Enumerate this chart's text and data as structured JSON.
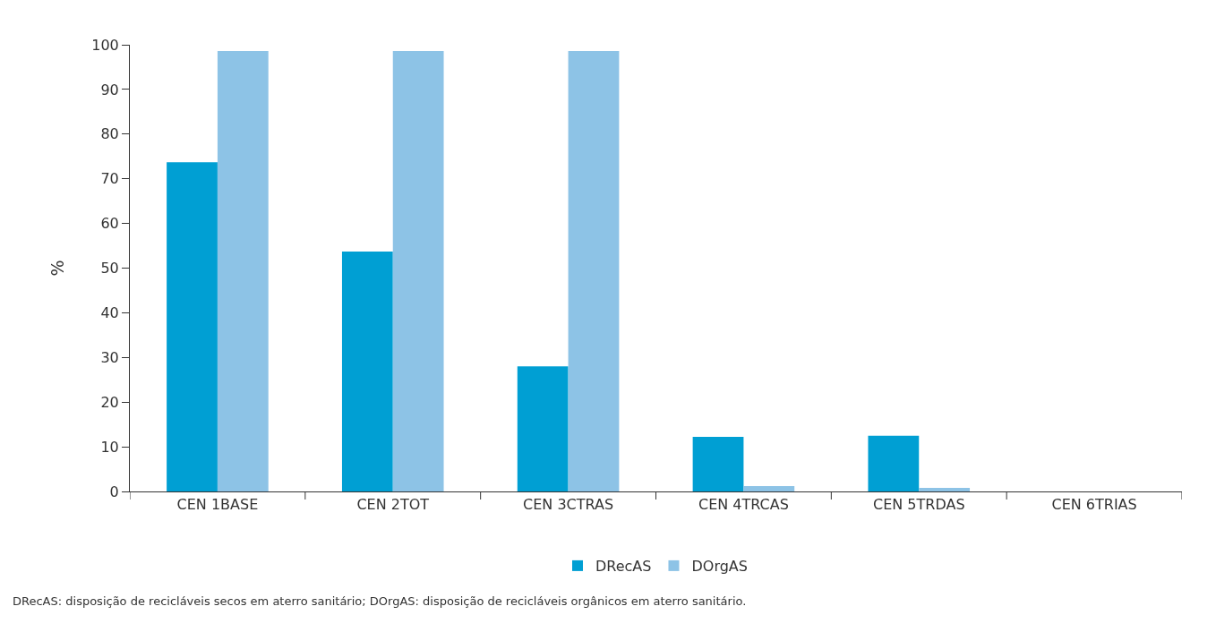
{
  "chart_data": {
    "type": "bar",
    "ylabel": "%",
    "categories": [
      "CEN 1BASE",
      "CEN 2TOT",
      "CEN 3CTRAS",
      "CEN 4TRCAS",
      "CEN 5TRDAS",
      "CEN 6TRIAS"
    ],
    "series": [
      {
        "name": "DRecAS",
        "color": "#009fd3",
        "values": [
          73.7,
          53.7,
          28.0,
          12.2,
          12.5,
          0
        ]
      },
      {
        "name": "DOrgAS",
        "color": "#8dc3e6",
        "values": [
          98.6,
          98.6,
          98.6,
          1.2,
          0.8,
          0
        ]
      }
    ],
    "ylim": [
      0,
      100
    ],
    "yticks": [
      0,
      10,
      20,
      30,
      40,
      50,
      60,
      70,
      80,
      90,
      100
    ],
    "grid": false,
    "legend": "bottom",
    "annotations": [
      "DRecAS: disposição de recicláveis secos em aterro sanitário; DOrgAS: disposição de recicláveis orgânicos em aterro sanitário."
    ]
  }
}
